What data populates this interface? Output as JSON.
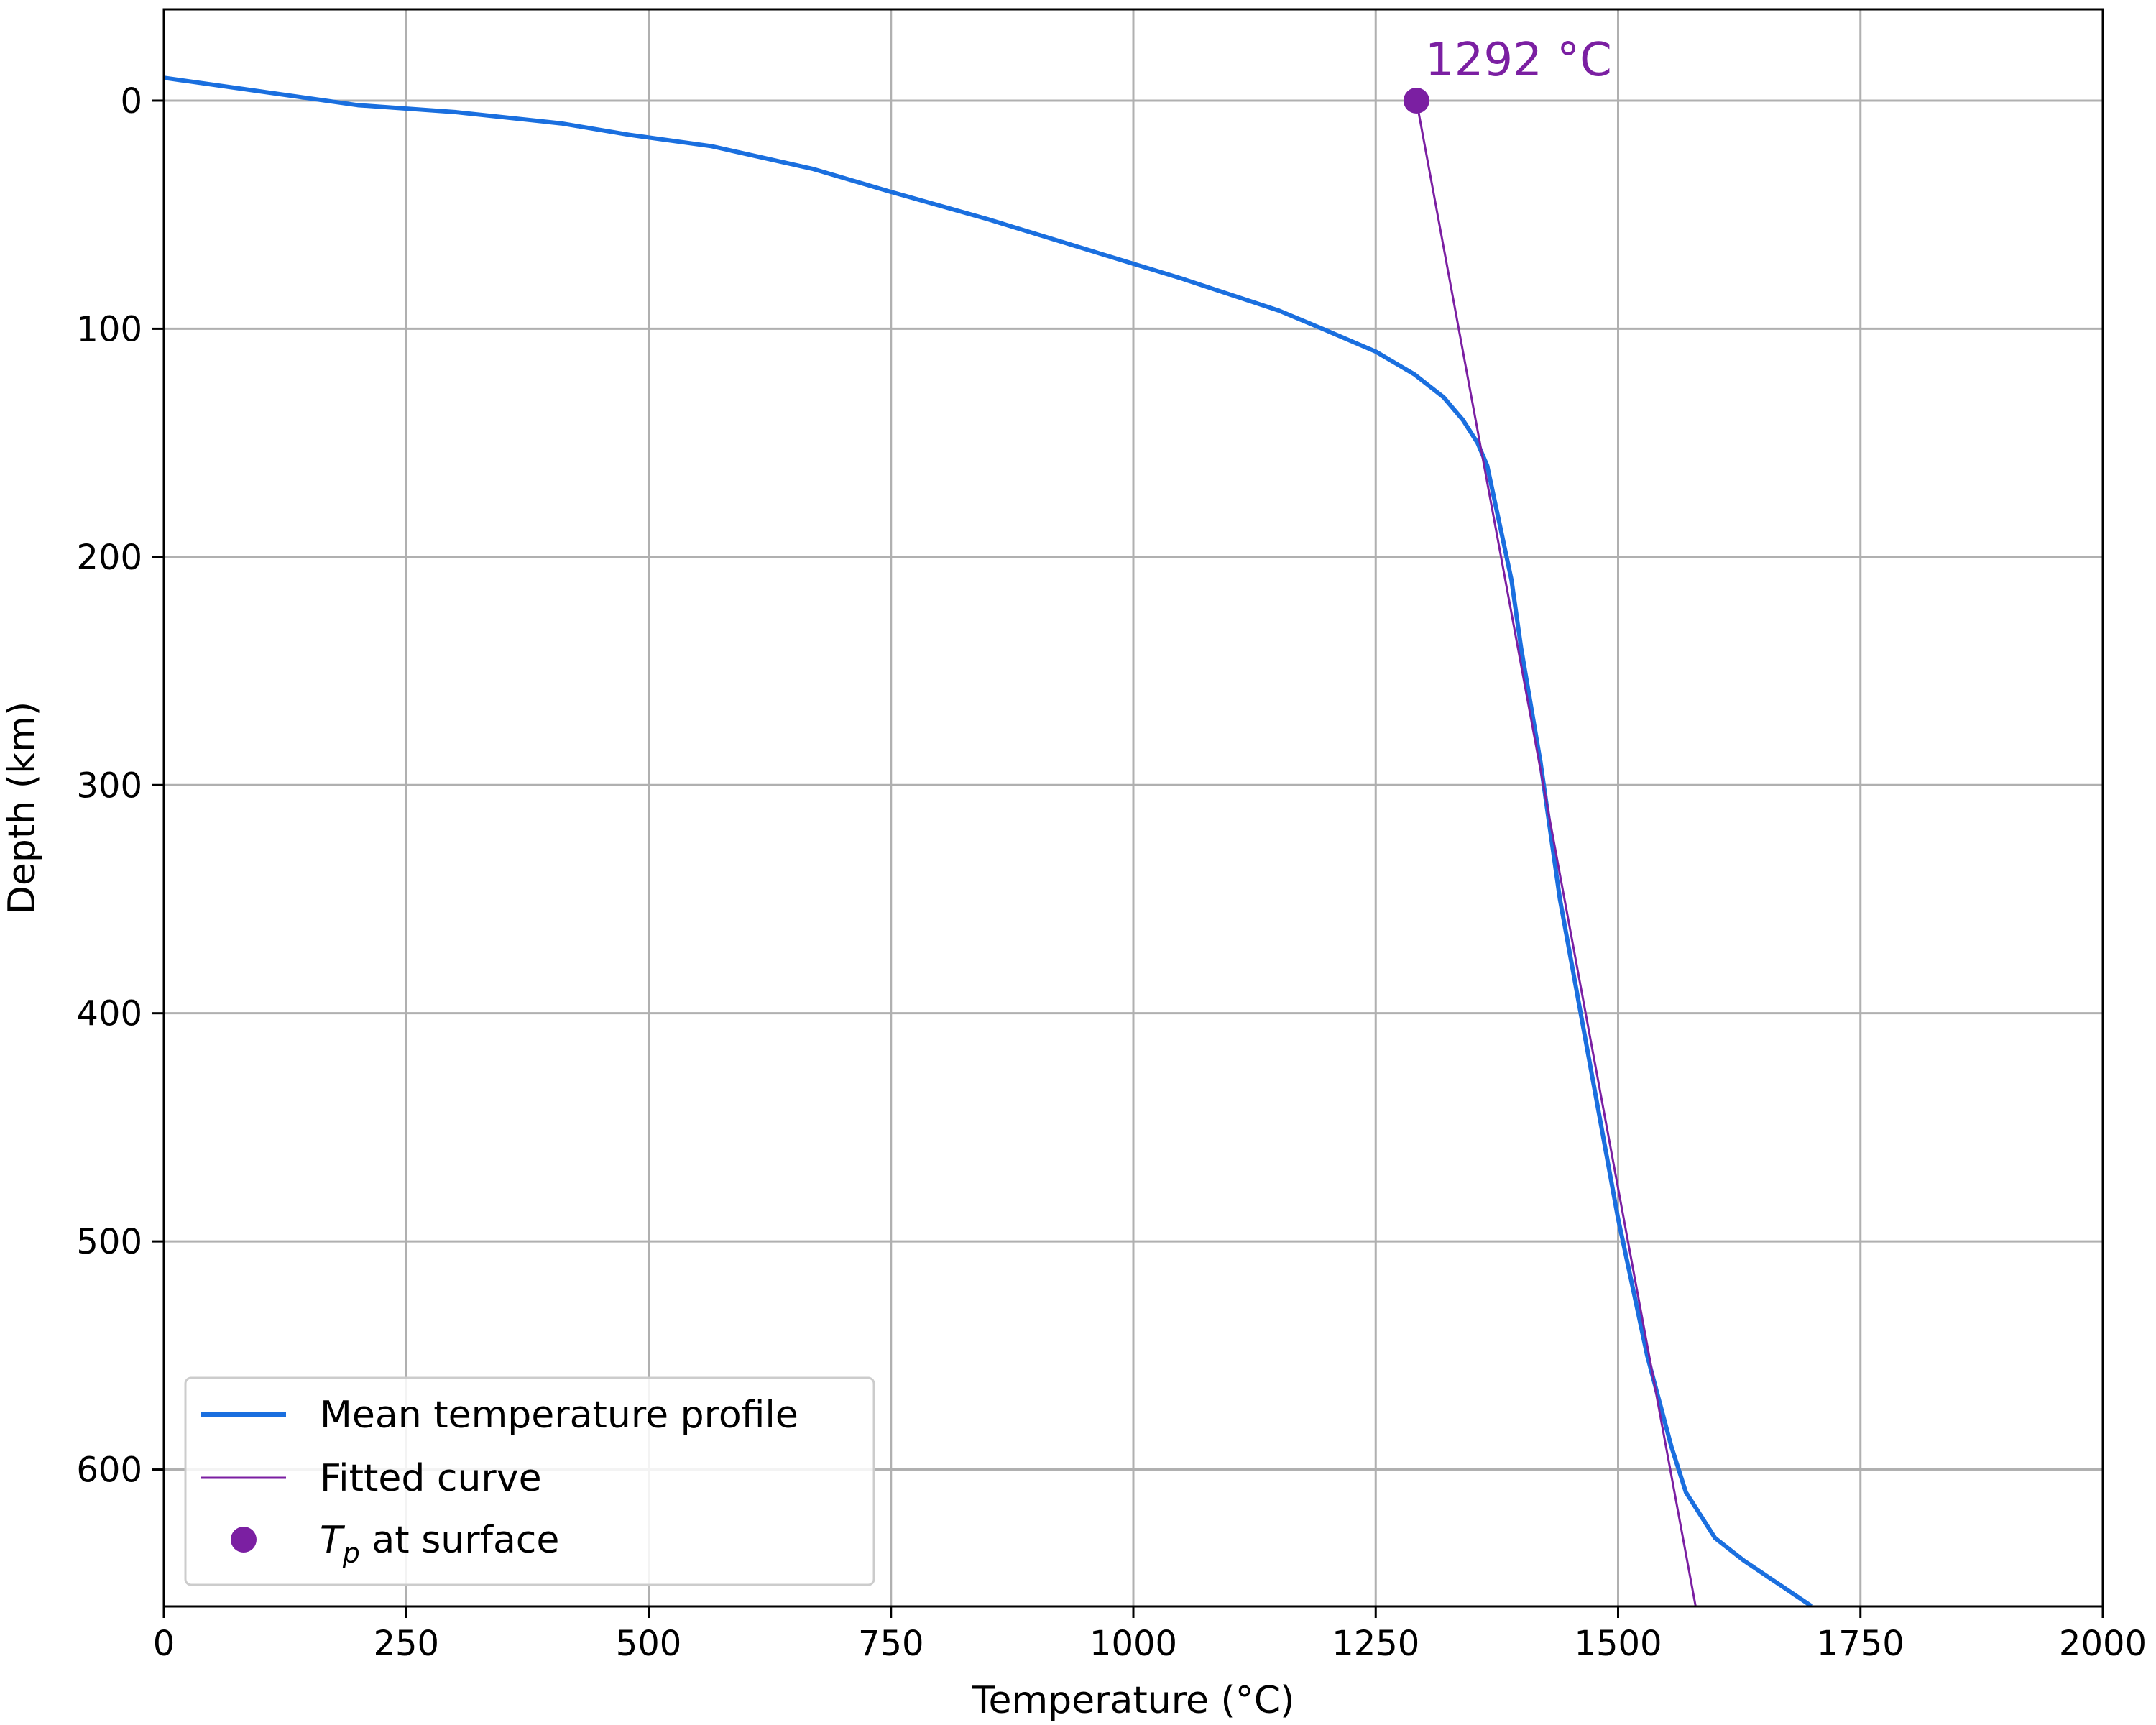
{
  "chart_data": {
    "type": "line",
    "xlabel": "Temperature (°C)",
    "ylabel": "Depth (km)",
    "xlim": [
      0,
      2000
    ],
    "ylim": [
      660,
      -40
    ],
    "y_inverted": true,
    "grid": true,
    "xticks": [
      0,
      250,
      500,
      750,
      1000,
      1250,
      1500,
      1750,
      2000
    ],
    "yticks": [
      0,
      100,
      200,
      300,
      400,
      500,
      600
    ],
    "legend_position": "lower-left",
    "series": [
      {
        "name": "Mean temperature profile",
        "color": "#1a6fdf",
        "x": [
          0,
          100,
          200,
          300,
          410,
          480,
          565,
          670,
          750,
          850,
          950,
          1050,
          1150,
          1195,
          1250,
          1290,
          1320,
          1340,
          1355,
          1365,
          1375,
          1390,
          1400,
          1420,
          1440,
          1470,
          1500,
          1530,
          1555,
          1570,
          1585,
          1600,
          1630,
          1665,
          1700
        ],
        "y": [
          -10,
          -4,
          2,
          5,
          10,
          15,
          20,
          30,
          40,
          52,
          65,
          78,
          92,
          100,
          110,
          120,
          130,
          140,
          150,
          160,
          180,
          210,
          240,
          290,
          350,
          420,
          490,
          550,
          590,
          610,
          620,
          630,
          640,
          650,
          660
        ]
      },
      {
        "name": "Fitted curve",
        "color": "#7b1fa2",
        "x": [
          1292,
          1580
        ],
        "y": [
          0,
          660
        ]
      }
    ],
    "points": [
      {
        "name": "T_p at surface",
        "legend_label": "at surface",
        "legend_symbol": "T",
        "legend_subscript": "p",
        "x": 1292,
        "y": 0,
        "color": "#7b1fa2",
        "annotation": "1292 °C"
      }
    ]
  }
}
